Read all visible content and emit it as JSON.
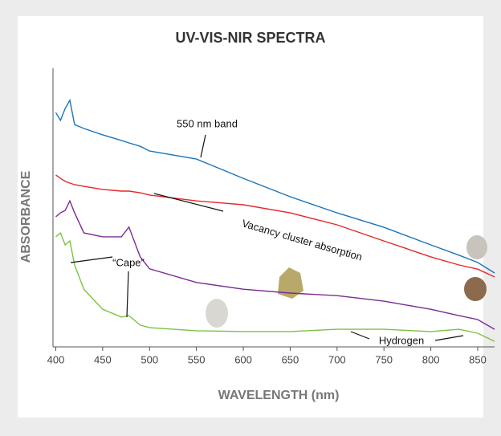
{
  "chart_data": {
    "type": "line",
    "title": "UV-VIS-NIR SPECTRA",
    "x_label": "WAVELENGTH (nm)",
    "y_label": "ABSORBANCE",
    "x": [
      400,
      405,
      410,
      415,
      420,
      430,
      450,
      470,
      478,
      490,
      500,
      550,
      600,
      650,
      700,
      750,
      800,
      830,
      850,
      868
    ],
    "series": [
      {
        "color": "#1a75bc",
        "values": [
          84.1,
          81.3,
          85.6,
          88.5,
          79.8,
          78.4,
          76.1,
          74.1,
          73.2,
          72.0,
          70.3,
          67.4,
          60.5,
          53.9,
          48.1,
          42.9,
          36.6,
          32.9,
          30.3,
          26.5
        ]
      },
      {
        "color": "#e8262b",
        "values": [
          61.7,
          60.5,
          59.4,
          58.8,
          58.2,
          57.6,
          56.5,
          55.9,
          55.9,
          55.3,
          54.5,
          52.4,
          51.0,
          48.1,
          43.8,
          38.0,
          32.3,
          29.4,
          27.9,
          25.1
        ]
      },
      {
        "color": "#7b2c91",
        "values": [
          46.7,
          48.1,
          49.0,
          52.4,
          48.1,
          40.9,
          39.5,
          39.5,
          43.0,
          32.3,
          28.0,
          23.1,
          20.7,
          19.3,
          18.4,
          16.4,
          13.5,
          11.2,
          9.8,
          6.3
        ]
      },
      {
        "color": "#7cc142",
        "values": [
          39.5,
          40.9,
          36.6,
          38.0,
          29.4,
          20.7,
          13.5,
          10.7,
          11.2,
          7.8,
          6.9,
          5.8,
          5.5,
          5.5,
          6.3,
          6.3,
          5.5,
          6.3,
          4.9,
          2.0
        ]
      }
    ],
    "xlim": [
      397,
      868
    ],
    "xticks": [
      400,
      450,
      500,
      550,
      600,
      650,
      700,
      750,
      800,
      850
    ],
    "ylim": [
      0,
      100
    ],
    "annotations": [
      "550 nm band",
      "Vacancy cluster absorption",
      "“Cape”",
      "Hydrogen"
    ]
  }
}
